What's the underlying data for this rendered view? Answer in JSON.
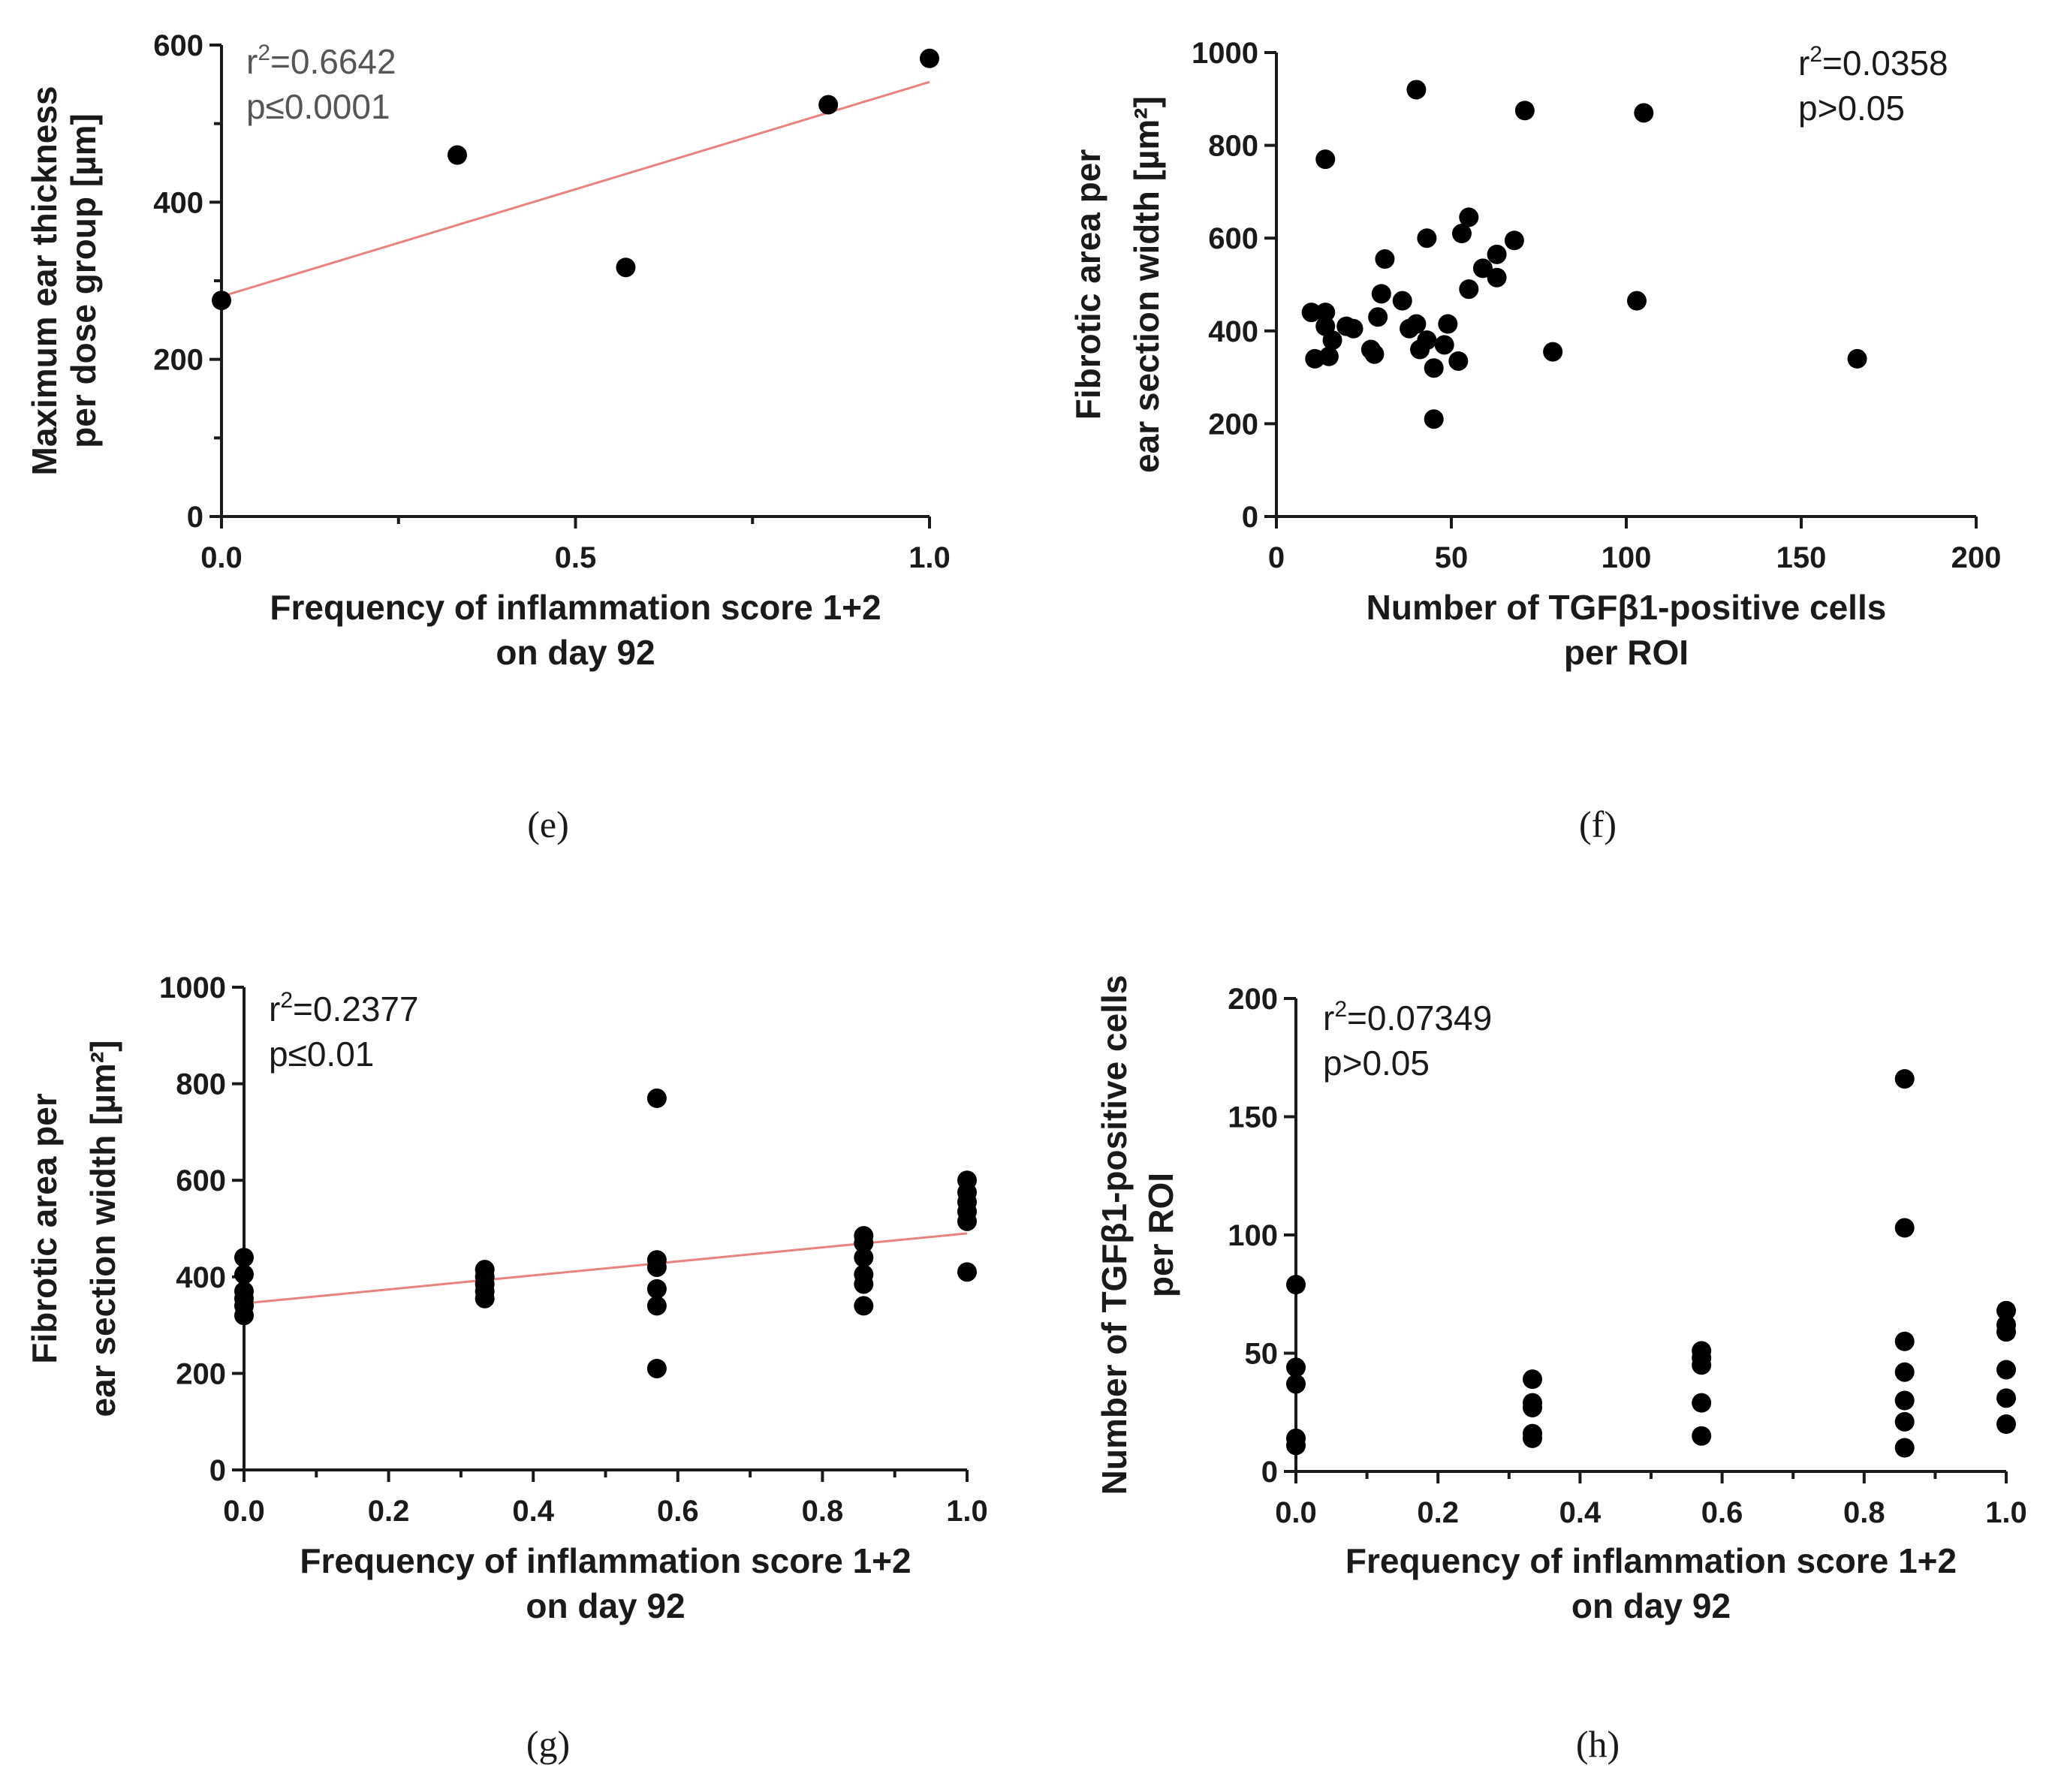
{
  "chart_data": [
    {
      "id": "e",
      "type": "scatter",
      "caption": "(e)",
      "xlabel": [
        "Frequency of inflammation score 1+2",
        "on day 92"
      ],
      "ylabel": [
        "Maximum ear thickness",
        "per dose group [µm]"
      ],
      "xlim": [
        0,
        1.0
      ],
      "ylim": [
        0,
        600
      ],
      "xticks": [
        0,
        0.5,
        1.0
      ],
      "xtick_labels": [
        "0.0",
        "0.5",
        "1.0"
      ],
      "xminor": [
        0.25,
        0.75
      ],
      "yticks": [
        0,
        200,
        400,
        600
      ],
      "ytick_labels": [
        "0",
        "200",
        "400",
        "600"
      ],
      "yminor": [
        100,
        300,
        500
      ],
      "stats": [
        "=0.6642",
        "p≤0.0001"
      ],
      "stats_color": "#555555",
      "fit": {
        "x": [
          0,
          1.0
        ],
        "y": [
          280,
          553
        ]
      },
      "points": [
        [
          0,
          275
        ],
        [
          0.333,
          460
        ],
        [
          0.571,
          317
        ],
        [
          0.857,
          524
        ],
        [
          1.0,
          583
        ]
      ]
    },
    {
      "id": "f",
      "type": "scatter",
      "caption": "(f)",
      "xlabel": [
        "Number of TGFβ1-positive cells",
        "per ROI"
      ],
      "ylabel": [
        "Fibrotic area per",
        "ear section width [µm²]"
      ],
      "xlim": [
        0,
        200
      ],
      "ylim": [
        0,
        1000
      ],
      "xticks": [
        0,
        50,
        100,
        150,
        200
      ],
      "xtick_labels": [
        "0",
        "50",
        "100",
        "150",
        "200"
      ],
      "xminor": [],
      "yticks": [
        0,
        200,
        400,
        600,
        800,
        1000
      ],
      "ytick_labels": [
        "0",
        "200",
        "400",
        "600",
        "800",
        "1000"
      ],
      "yminor": [],
      "stats": [
        "=0.0358",
        "p>0.05"
      ],
      "stats_color": "#1a1a1a",
      "fit": null,
      "points": [
        [
          10,
          440
        ],
        [
          11,
          340
        ],
        [
          14,
          770
        ],
        [
          14,
          440
        ],
        [
          14,
          410
        ],
        [
          15,
          345
        ],
        [
          16,
          380
        ],
        [
          20,
          410
        ],
        [
          22,
          405
        ],
        [
          27,
          360
        ],
        [
          28,
          350
        ],
        [
          29,
          430
        ],
        [
          30,
          480
        ],
        [
          31,
          555
        ],
        [
          36,
          465
        ],
        [
          38,
          405
        ],
        [
          40,
          920
        ],
        [
          40,
          415
        ],
        [
          41,
          360
        ],
        [
          43,
          380
        ],
        [
          43,
          600
        ],
        [
          45,
          320
        ],
        [
          45,
          210
        ],
        [
          48,
          370
        ],
        [
          49,
          415
        ],
        [
          52,
          335
        ],
        [
          53,
          610
        ],
        [
          55,
          490
        ],
        [
          55,
          645
        ],
        [
          59,
          535
        ],
        [
          63,
          515
        ],
        [
          63,
          565
        ],
        [
          68,
          595
        ],
        [
          71,
          875
        ],
        [
          79,
          355
        ],
        [
          103,
          465
        ],
        [
          105,
          870
        ],
        [
          166,
          340
        ]
      ]
    },
    {
      "id": "g",
      "type": "scatter",
      "caption": "(g)",
      "xlabel": [
        "Frequency of inflammation score 1+2",
        "on day 92"
      ],
      "ylabel": [
        "Fibrotic area per",
        "ear section width [µm²]"
      ],
      "xlim": [
        0,
        1.0
      ],
      "ylim": [
        0,
        1000
      ],
      "xticks": [
        0,
        0.2,
        0.4,
        0.6,
        0.8,
        1.0
      ],
      "xtick_labels": [
        "0.0",
        "0.2",
        "0.4",
        "0.6",
        "0.8",
        "1.0"
      ],
      "xminor": [
        0.1,
        0.3,
        0.5,
        0.7,
        0.9
      ],
      "yticks": [
        0,
        200,
        400,
        600,
        800,
        1000
      ],
      "ytick_labels": [
        "0",
        "200",
        "400",
        "600",
        "800",
        "1000"
      ],
      "yminor": [],
      "stats": [
        "=0.2377",
        "p≤0.01"
      ],
      "stats_color": "#1a1a1a",
      "fit": {
        "x": [
          0,
          1.0
        ],
        "y": [
          345,
          490
        ]
      },
      "points": [
        [
          0,
          440
        ],
        [
          0,
          405
        ],
        [
          0,
          370
        ],
        [
          0,
          355
        ],
        [
          0,
          340
        ],
        [
          0,
          320
        ],
        [
          0.333,
          415
        ],
        [
          0.333,
          400
        ],
        [
          0.333,
          385
        ],
        [
          0.333,
          370
        ],
        [
          0.333,
          355
        ],
        [
          0.571,
          770
        ],
        [
          0.571,
          435
        ],
        [
          0.571,
          420
        ],
        [
          0.571,
          375
        ],
        [
          0.571,
          340
        ],
        [
          0.571,
          210
        ],
        [
          0.857,
          485
        ],
        [
          0.857,
          470
        ],
        [
          0.857,
          440
        ],
        [
          0.857,
          405
        ],
        [
          0.857,
          385
        ],
        [
          0.857,
          340
        ],
        [
          1.0,
          600
        ],
        [
          1.0,
          575
        ],
        [
          1.0,
          555
        ],
        [
          1.0,
          535
        ],
        [
          1.0,
          515
        ],
        [
          1.0,
          410
        ]
      ]
    },
    {
      "id": "h",
      "type": "scatter",
      "caption": "(h)",
      "xlabel": [
        "Frequency of inflammation score 1+2",
        "on day 92"
      ],
      "ylabel": [
        "Number of TGFβ1-positive cells",
        "per ROI"
      ],
      "xlim": [
        0,
        1.0
      ],
      "ylim": [
        0,
        200
      ],
      "xticks": [
        0,
        0.2,
        0.4,
        0.6,
        0.8,
        1.0
      ],
      "xtick_labels": [
        "0.0",
        "0.2",
        "0.4",
        "0.6",
        "0.8",
        "1.0"
      ],
      "xminor": [
        0.1,
        0.3,
        0.5,
        0.7,
        0.9
      ],
      "yticks": [
        0,
        50,
        100,
        150,
        200
      ],
      "ytick_labels": [
        "0",
        "50",
        "100",
        "150",
        "200"
      ],
      "yminor": [],
      "stats": [
        "=0.07349",
        "p>0.05"
      ],
      "stats_color": "#1a1a1a",
      "fit": null,
      "points": [
        [
          0,
          79
        ],
        [
          0,
          44
        ],
        [
          0,
          37
        ],
        [
          0,
          14
        ],
        [
          0,
          11
        ],
        [
          0.333,
          39
        ],
        [
          0.333,
          29
        ],
        [
          0.333,
          27
        ],
        [
          0.333,
          16
        ],
        [
          0.333,
          14
        ],
        [
          0.571,
          51
        ],
        [
          0.571,
          48
        ],
        [
          0.571,
          45
        ],
        [
          0.571,
          29
        ],
        [
          0.571,
          15
        ],
        [
          0.857,
          166
        ],
        [
          0.857,
          103
        ],
        [
          0.857,
          55
        ],
        [
          0.857,
          42
        ],
        [
          0.857,
          30
        ],
        [
          0.857,
          21
        ],
        [
          0.857,
          10
        ],
        [
          1.0,
          68
        ],
        [
          1.0,
          62
        ],
        [
          1.0,
          59
        ],
        [
          1.0,
          43
        ],
        [
          1.0,
          31
        ],
        [
          1.0,
          20
        ]
      ]
    }
  ]
}
